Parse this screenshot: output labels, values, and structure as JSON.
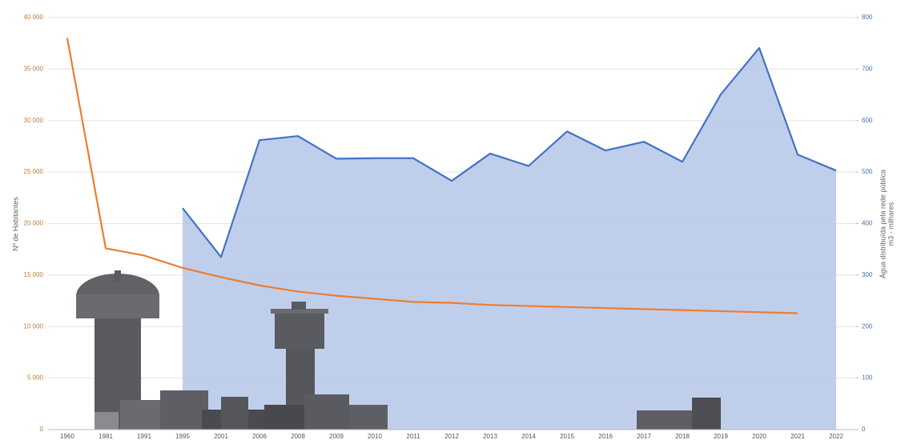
{
  "chart_data": {
    "type": "line",
    "y_label": "Nº de Habitantes",
    "y2_label": [
      "Água distribuída pela rede pública",
      "m3 - milhares"
    ],
    "categories": [
      "1960",
      "1981",
      "1991",
      "1995",
      "2001",
      "2006",
      "2008",
      "2009",
      "2010",
      "2011",
      "2012",
      "2013",
      "2014",
      "2015",
      "2016",
      "2017",
      "2018",
      "2019",
      "2020",
      "2021",
      "2022"
    ],
    "series": [
      {
        "color": "#ed7d31",
        "axis": "y",
        "values": [
          38000,
          17600,
          16900,
          15700,
          14800,
          14000,
          13400,
          13000,
          12700,
          12400,
          12300,
          12100,
          12000,
          11900,
          11800,
          11700,
          11600,
          11500,
          11400,
          11300,
          null
        ]
      },
      {
        "color": "#4472c4",
        "fill": "#b4c7e7",
        "axis": "y2",
        "values": [
          null,
          null,
          null,
          430,
          335,
          562,
          570,
          526,
          527,
          527,
          483,
          536,
          512,
          579,
          542,
          559,
          520,
          651,
          741,
          534,
          503
        ]
      }
    ],
    "ylim": [
      0,
      40000
    ],
    "yticks": [
      0,
      {
        "value": 5000,
        "label": "5 000"
      },
      {
        "value": 10000,
        "label": "10 000"
      },
      {
        "value": 15000,
        "label": "15 000"
      },
      {
        "value": 20000,
        "label": "20 000"
      },
      {
        "value": 25000,
        "label": "25 000"
      },
      {
        "value": 30000,
        "label": "30 000"
      },
      {
        "value": 35000,
        "label": "35 000"
      },
      {
        "value": 40000,
        "label": "40 000"
      }
    ],
    "y2lim": [
      0,
      800
    ],
    "y2ticks": [
      0,
      100,
      200,
      300,
      400,
      500,
      600,
      700,
      800
    ],
    "grid": true
  }
}
